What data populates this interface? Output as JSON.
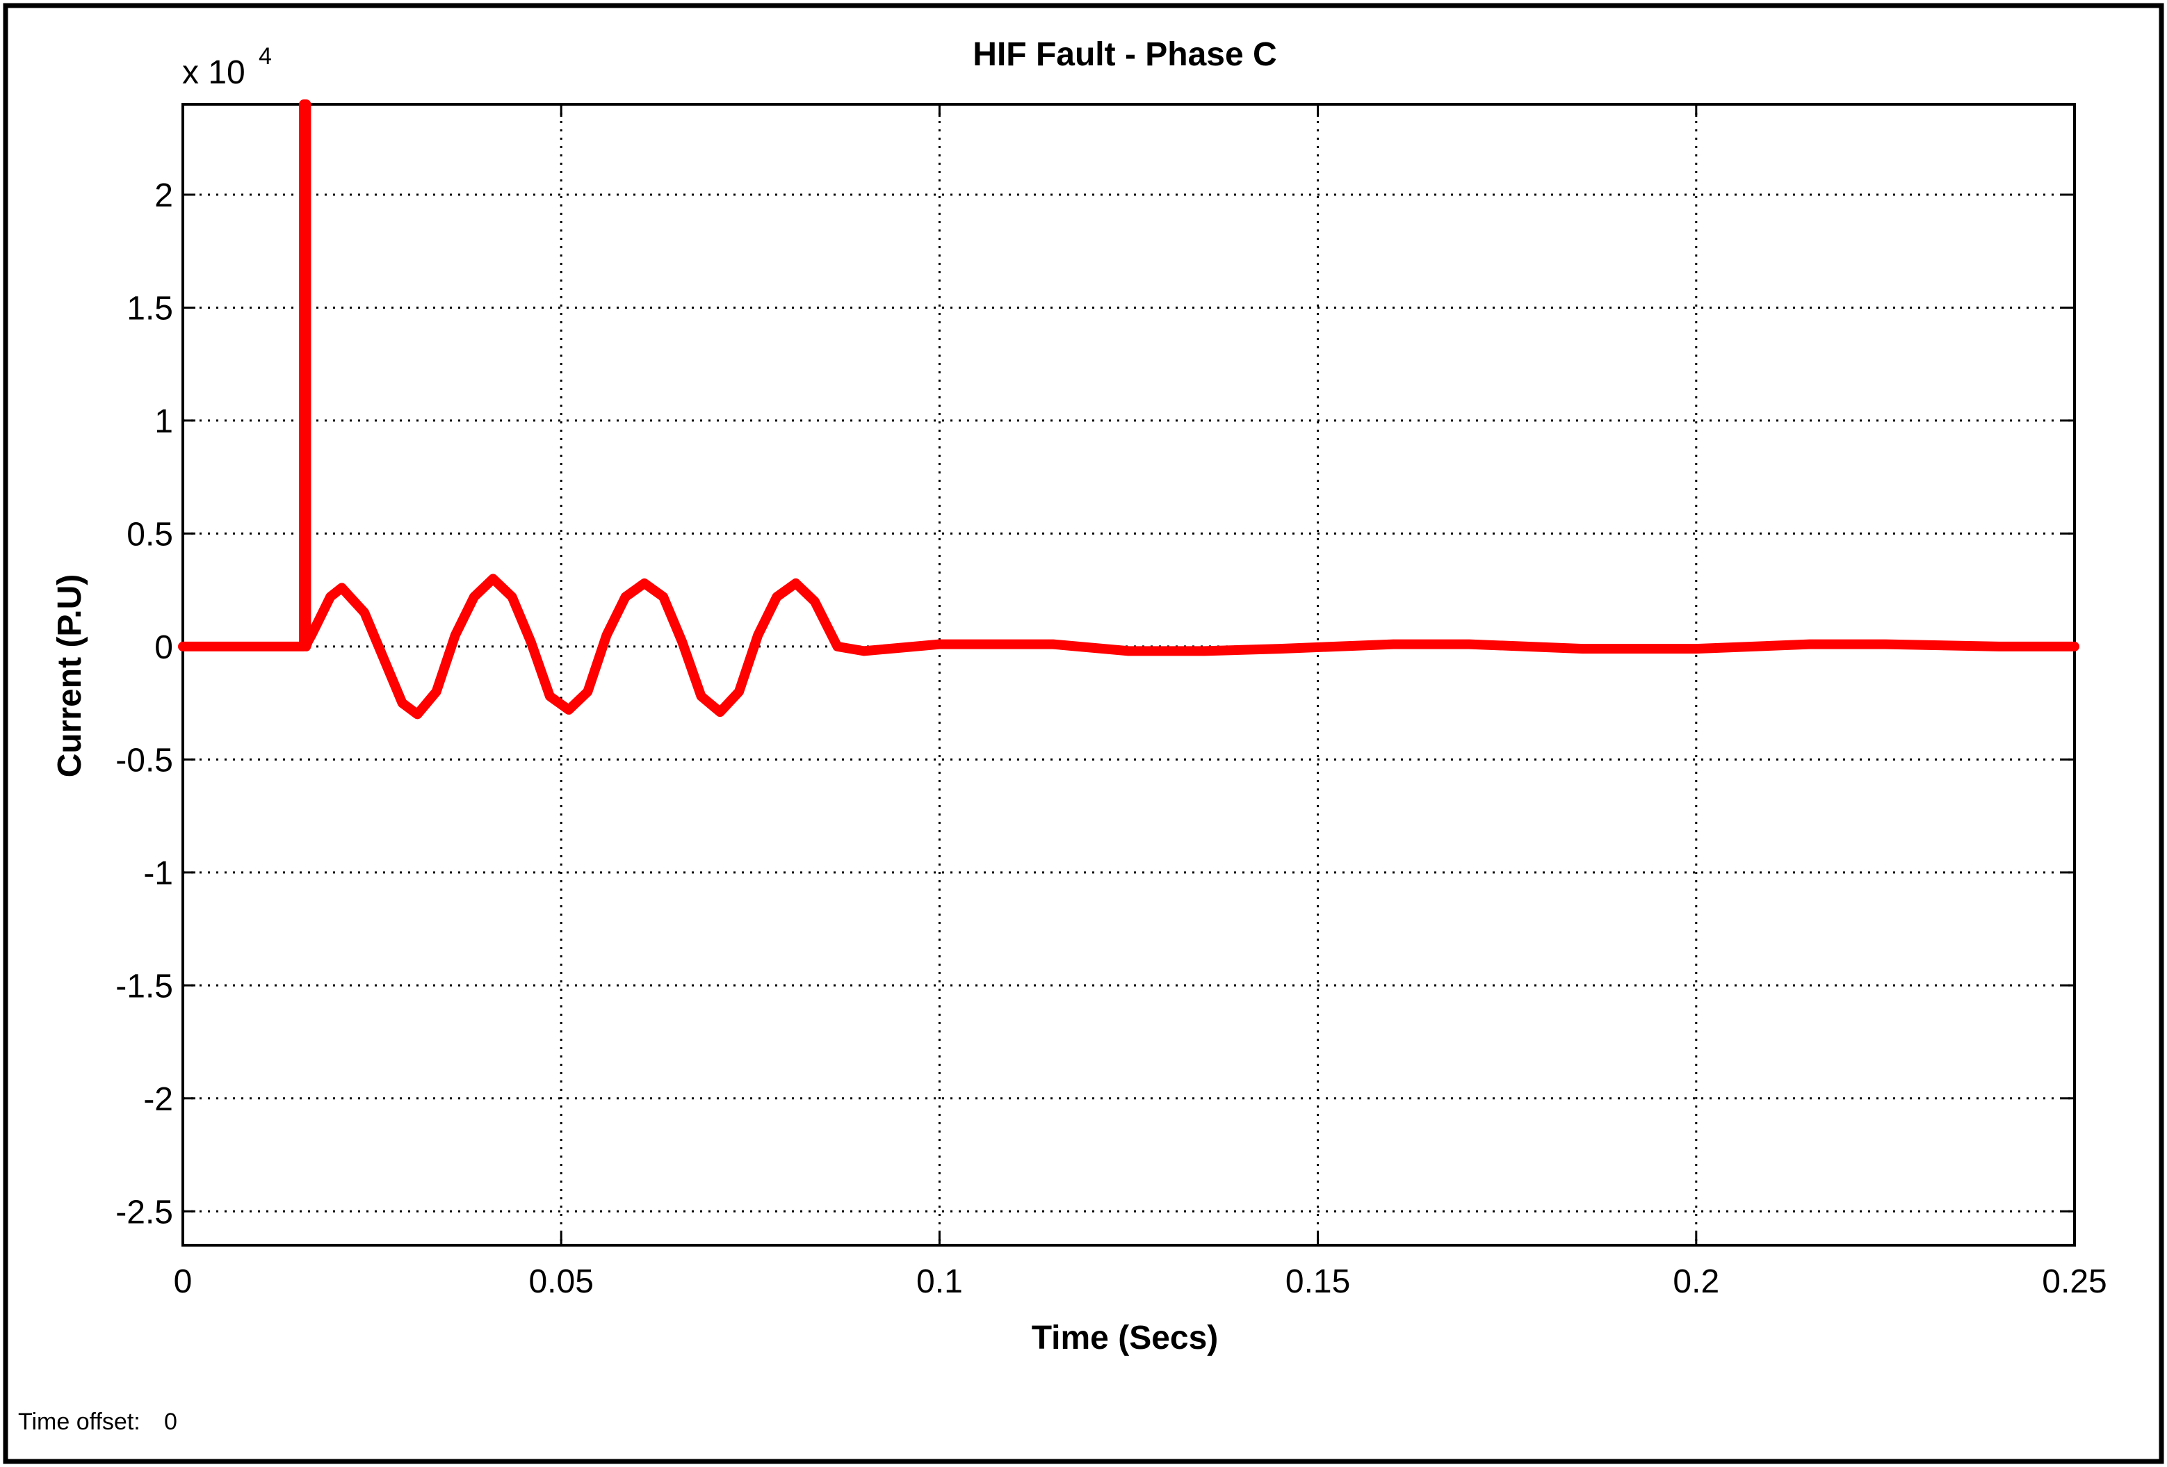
{
  "chart_data": {
    "type": "line",
    "title": "HIF Fault - Phase C",
    "xlabel": "Time (Secs)",
    "ylabel": "Current (P.U)",
    "y_multiplier": "x 10",
    "y_multiplier_exp": "4",
    "xlim": [
      0,
      0.25
    ],
    "ylim": [
      -2.65,
      2.4
    ],
    "xticks": [
      0,
      0.05,
      0.1,
      0.15,
      0.2,
      0.25
    ],
    "xtick_labels": [
      "0",
      "0.05",
      "0.1",
      "0.15",
      "0.2",
      "0.25"
    ],
    "yticks": [
      2,
      1.5,
      1,
      0.5,
      0,
      -0.5,
      -1,
      -1.5,
      -2,
      -2.5
    ],
    "ytick_labels": [
      "2",
      "1.5",
      "1",
      "0.5",
      "0",
      "-0.5",
      "-1",
      "-1.5",
      "-2",
      "-2.5"
    ],
    "grid": true,
    "series": [
      {
        "color": "#ff0000",
        "x": [
          0,
          0.016,
          0.016,
          0.0163,
          0.0163,
          0.0165,
          0.017,
          0.0195,
          0.021,
          0.024,
          0.0265,
          0.029,
          0.031,
          0.0335,
          0.036,
          0.0385,
          0.041,
          0.0435,
          0.046,
          0.0485,
          0.051,
          0.0535,
          0.056,
          0.0585,
          0.061,
          0.0635,
          0.066,
          0.0685,
          0.071,
          0.0735,
          0.076,
          0.0785,
          0.081,
          0.0835,
          0.0865,
          0.09,
          0.1,
          0.115,
          0.125,
          0.135,
          0.145,
          0.16,
          0.17,
          0.185,
          0.2,
          0.215,
          0.225,
          0.24,
          0.25
        ],
        "y": [
          0,
          0,
          2.4,
          2.4,
          0,
          0.02,
          0.05,
          0.22,
          0.26,
          0.15,
          -0.05,
          -0.25,
          -0.3,
          -0.2,
          0.05,
          0.22,
          0.3,
          0.22,
          0.02,
          -0.22,
          -0.28,
          -0.2,
          0.05,
          0.22,
          0.28,
          0.22,
          0.02,
          -0.22,
          -0.29,
          -0.2,
          0.05,
          0.22,
          0.28,
          0.2,
          0,
          -0.02,
          0.01,
          0.01,
          -0.02,
          -0.02,
          -0.01,
          0.01,
          0.01,
          -0.01,
          -0.01,
          0.01,
          0.01,
          0,
          0
        ]
      }
    ],
    "annotation": {
      "label": "Time offset:",
      "value": "0"
    }
  }
}
